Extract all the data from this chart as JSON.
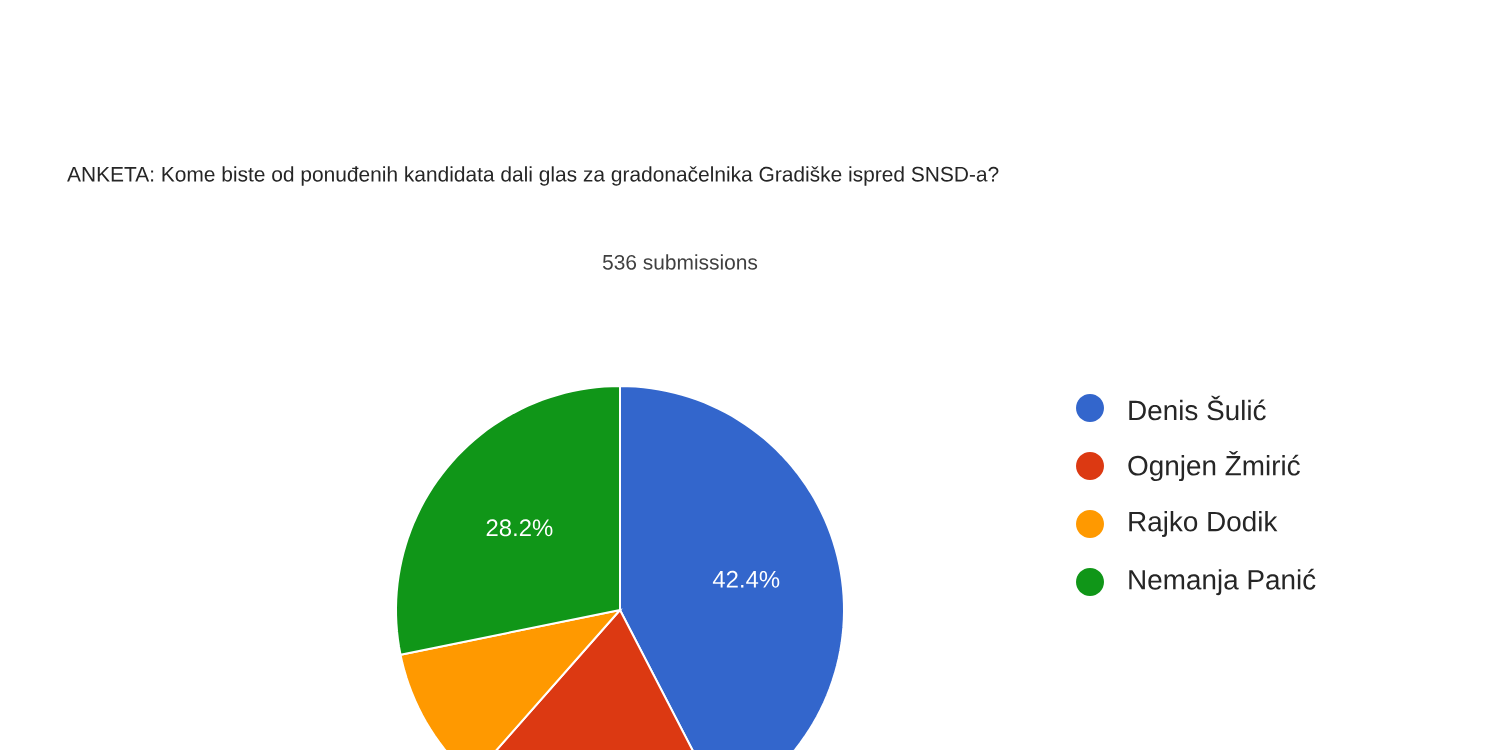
{
  "chart_data": {
    "type": "pie",
    "title": "ANKETA: Kome biste od ponuđenih kandidata dali glas za gradonačelnika Gradiške ispred SNSD-a?",
    "subtitle": "536 submissions",
    "categories": [
      "Denis Šulić",
      "Ognjen Žmirić",
      "Rajko Dodik",
      "Nemanja Panić"
    ],
    "values": [
      42.4,
      19.1,
      10.3,
      28.2
    ],
    "colors": [
      "#3366cc",
      "#dc3912",
      "#ff9900",
      "#109618"
    ],
    "value_labels": [
      "42.4%",
      null,
      null,
      "28.2%"
    ],
    "legend": "right"
  }
}
